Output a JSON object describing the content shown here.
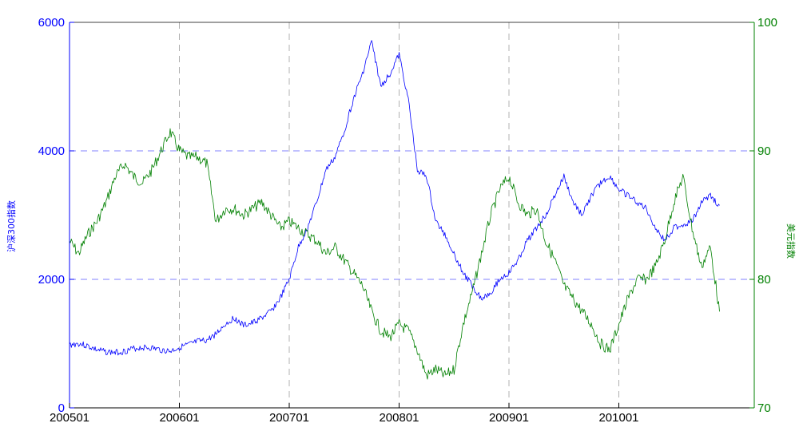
{
  "chart_data": {
    "type": "line",
    "xlabel": "",
    "x_ticks": [
      "200501",
      "200601",
      "200701",
      "200801",
      "200901",
      "201001"
    ],
    "x_range": [
      "2005-01",
      "2010-12"
    ],
    "left_axis": {
      "label": "沪深300指数",
      "ylim": [
        0,
        6000
      ],
      "ticks": [
        0,
        2000,
        4000,
        6000
      ],
      "color": "#0000ff"
    },
    "right_axis": {
      "label": "美元指数",
      "ylim": [
        70,
        100
      ],
      "ticks": [
        70,
        80,
        90,
        100
      ],
      "color": "#008000"
    },
    "grid": true,
    "series": [
      {
        "name": "沪深300指数",
        "axis": "left",
        "color": "#0000ff",
        "x": [
          "2005-01",
          "2005-02",
          "2005-03",
          "2005-04",
          "2005-05",
          "2005-06",
          "2005-07",
          "2005-08",
          "2005-09",
          "2005-10",
          "2005-11",
          "2005-12",
          "2006-01",
          "2006-02",
          "2006-03",
          "2006-04",
          "2006-05",
          "2006-06",
          "2006-07",
          "2006-08",
          "2006-09",
          "2006-10",
          "2006-11",
          "2006-12",
          "2007-01",
          "2007-02",
          "2007-03",
          "2007-04",
          "2007-05",
          "2007-06",
          "2007-07",
          "2007-08",
          "2007-09",
          "2007-10",
          "2007-11",
          "2007-12",
          "2008-01",
          "2008-02",
          "2008-03",
          "2008-04",
          "2008-05",
          "2008-06",
          "2008-07",
          "2008-08",
          "2008-09",
          "2008-10",
          "2008-11",
          "2008-12",
          "2009-01",
          "2009-02",
          "2009-03",
          "2009-04",
          "2009-05",
          "2009-06",
          "2009-07",
          "2009-08",
          "2009-09",
          "2009-10",
          "2009-11",
          "2009-12",
          "2010-01",
          "2010-02",
          "2010-03",
          "2010-04",
          "2010-05",
          "2010-06",
          "2010-07",
          "2010-08",
          "2010-09",
          "2010-10",
          "2010-11",
          "2010-12"
        ],
        "values": [
          980,
          1000,
          960,
          900,
          870,
          860,
          880,
          920,
          940,
          930,
          900,
          880,
          940,
          980,
          1030,
          1050,
          1150,
          1300,
          1400,
          1280,
          1320,
          1400,
          1500,
          1700,
          2000,
          2500,
          2800,
          3200,
          3700,
          3900,
          4300,
          4800,
          5200,
          5700,
          5000,
          5200,
          5500,
          4800,
          3700,
          3600,
          2900,
          2700,
          2400,
          2100,
          1900,
          1700,
          1800,
          2000,
          2100,
          2300,
          2600,
          2800,
          3000,
          3300,
          3600,
          3200,
          3000,
          3300,
          3500,
          3600,
          3400,
          3300,
          3200,
          3100,
          2800,
          2600,
          2800,
          2850,
          2900,
          3200,
          3300,
          3150
        ]
      },
      {
        "name": "美元指数",
        "axis": "right",
        "color": "#008000",
        "x": [
          "2005-01",
          "2005-02",
          "2005-03",
          "2005-04",
          "2005-05",
          "2005-06",
          "2005-07",
          "2005-08",
          "2005-09",
          "2005-10",
          "2005-11",
          "2005-12",
          "2006-01",
          "2006-02",
          "2006-03",
          "2006-04",
          "2006-05",
          "2006-06",
          "2006-07",
          "2006-08",
          "2006-09",
          "2006-10",
          "2006-11",
          "2006-12",
          "2007-01",
          "2007-02",
          "2007-03",
          "2007-04",
          "2007-05",
          "2007-06",
          "2007-07",
          "2007-08",
          "2007-09",
          "2007-10",
          "2007-11",
          "2007-12",
          "2008-01",
          "2008-02",
          "2008-03",
          "2008-04",
          "2008-05",
          "2008-06",
          "2008-07",
          "2008-08",
          "2008-09",
          "2008-10",
          "2008-11",
          "2008-12",
          "2009-01",
          "2009-02",
          "2009-03",
          "2009-04",
          "2009-05",
          "2009-06",
          "2009-07",
          "2009-08",
          "2009-09",
          "2009-10",
          "2009-11",
          "2009-12",
          "2010-01",
          "2010-02",
          "2010-03",
          "2010-04",
          "2010-05",
          "2010-06",
          "2010-07",
          "2010-08",
          "2010-09",
          "2010-10",
          "2010-11",
          "2010-12"
        ],
        "values": [
          83,
          82,
          83.5,
          84.5,
          86,
          88,
          89,
          88,
          87.5,
          88.5,
          90,
          91.5,
          90,
          89.5,
          89.5,
          89,
          84.5,
          85.5,
          85.5,
          85,
          85.5,
          86,
          85,
          84,
          84.5,
          84,
          83.5,
          83,
          82,
          82.5,
          81.5,
          80.5,
          79.5,
          77.5,
          76,
          75.5,
          76.5,
          76,
          74.5,
          72.5,
          73,
          72.5,
          73,
          76.5,
          79,
          82,
          85,
          87,
          88,
          86,
          85,
          85.5,
          83,
          81.5,
          79.5,
          78.5,
          77.5,
          76.5,
          75,
          74.5,
          76.5,
          78.5,
          80,
          80,
          81,
          83,
          86,
          88,
          84,
          81,
          82.5,
          77.5
        ]
      }
    ]
  }
}
